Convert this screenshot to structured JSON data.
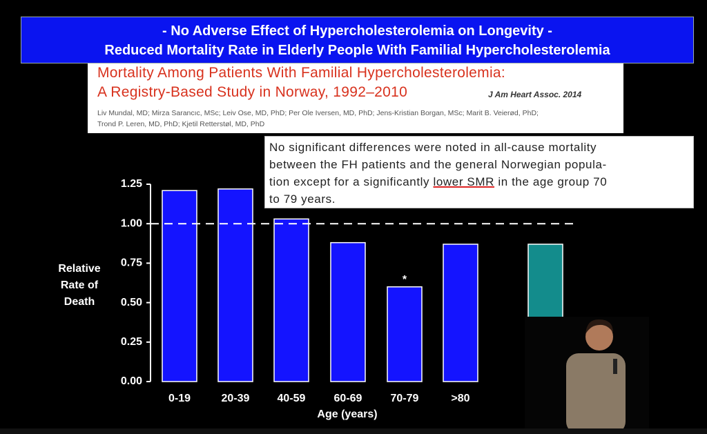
{
  "header": {
    "lines": [
      "- No Adverse Effect of Hypercholesterolemia on Longevity -",
      "Reduced Mortality Rate in Elderly People With Familial Hypercholesterolemia"
    ]
  },
  "paper": {
    "title_lines": [
      "Mortality Among Patients With Familial Hypercholesterolemia:",
      "A Registry-Based Study in Norway, 1992–2010"
    ],
    "journal": "J Am Heart Assoc. 2014",
    "authors": [
      "Liv Mundal, MD; Mirza Sarancıc, MSc; Leiv Ose, MD, PhD; Per Ole Iversen, MD, PhD; Jens-Kristian Borgan, MSc; Marit B. Veierød, PhD;",
      "Trond P. Leren, MD, PhD; Kjetil Retterstøl, MD, PhD"
    ]
  },
  "quote": {
    "lines": [
      "No significant differences were noted in all-cause mortality",
      "between the FH patients and the general Norwegian popula-",
      "tion except for a significantly ",
      "lower SMR",
      " in the age group 70",
      "to 79 years."
    ]
  },
  "chart_data": {
    "type": "bar",
    "categories": [
      "0-19",
      "20-39",
      "40-59",
      "60-69",
      "70-79",
      ">80",
      null
    ],
    "values": [
      1.21,
      1.22,
      1.03,
      0.88,
      0.6,
      0.87,
      0.87
    ],
    "colors": [
      "#1414ff",
      "#1414ff",
      "#1414ff",
      "#1414ff",
      "#1414ff",
      "#1414ff",
      "#138c8c"
    ],
    "ylim": [
      0,
      1.25
    ],
    "yticks": [
      {
        "value": 0,
        "label": "0.00"
      },
      {
        "value": 0.25,
        "label": "0.25"
      },
      {
        "value": 0.5,
        "label": "0.50"
      },
      {
        "value": 0.75,
        "label": "0.75"
      },
      {
        "value": 1,
        "label": "1.00"
      },
      {
        "value": 1.25,
        "label": "1.25"
      }
    ],
    "reference_line": 1,
    "annotation": "*",
    "y_label": [
      "Relative",
      "Rate of",
      "Death"
    ],
    "x_label": "Age (years)"
  }
}
